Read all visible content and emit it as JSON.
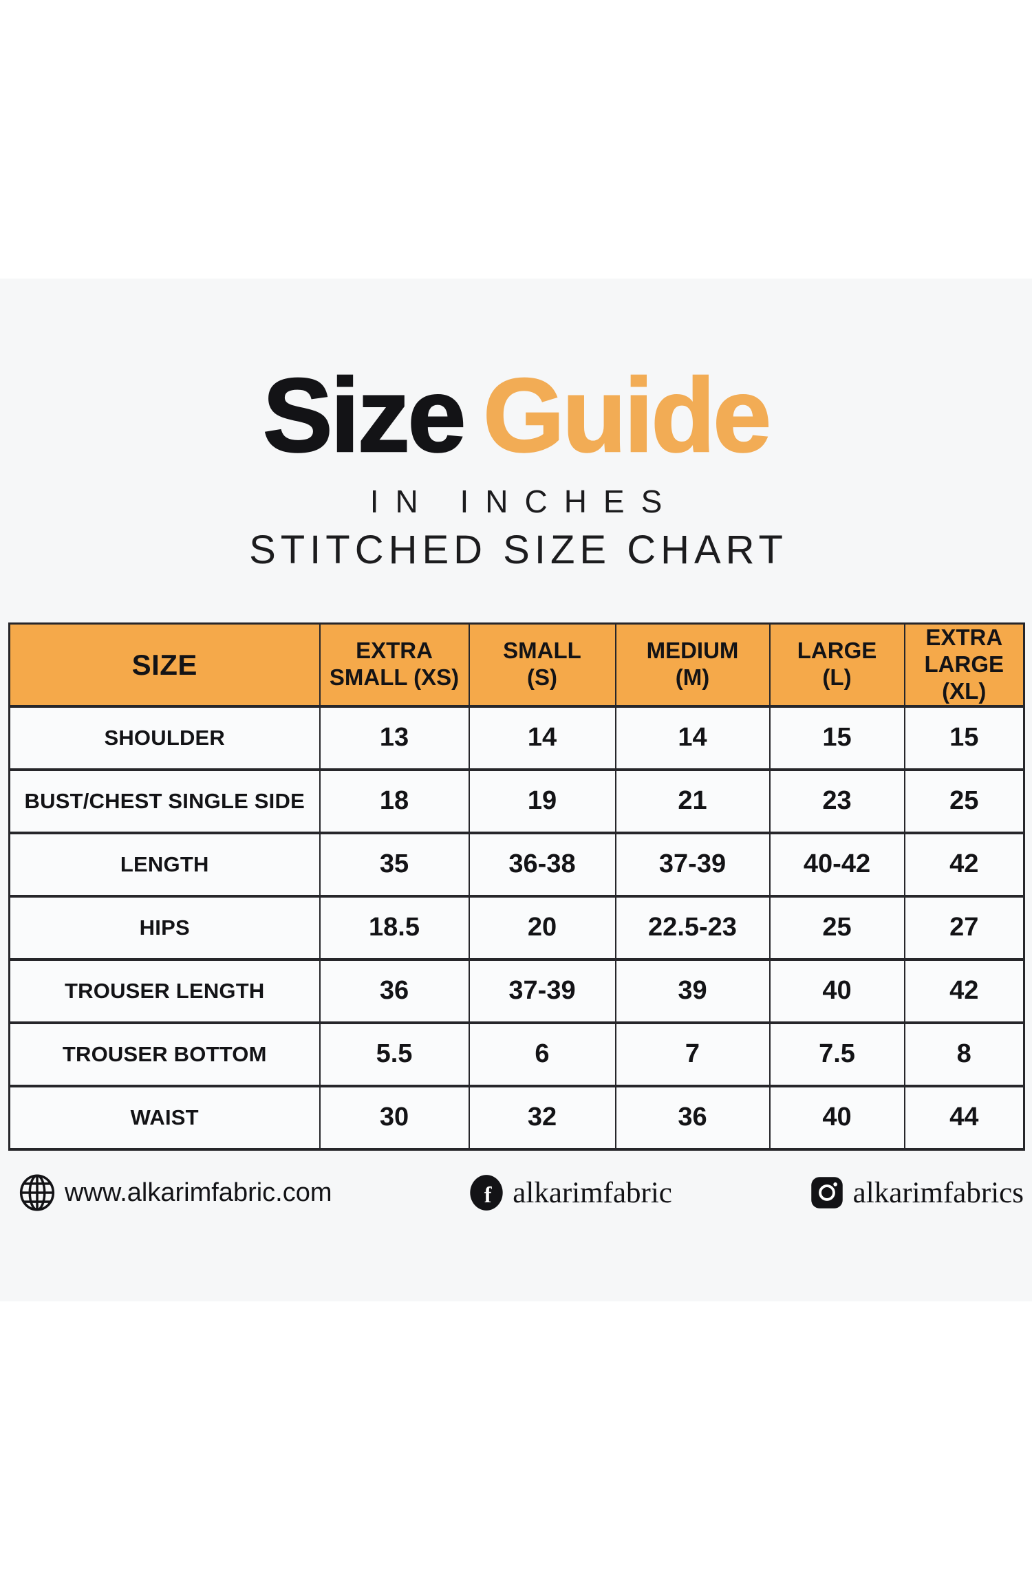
{
  "page": {
    "title_black": "Size",
    "title_accent": "Guide",
    "subtitle1": "IN INCHES",
    "subtitle2": "STITCHED SIZE CHART"
  },
  "colors": {
    "accent_orange": "#F5A94A",
    "title_orange": "#F2AC55",
    "band_background": "#F6F7F8",
    "table_border": "#26262A"
  },
  "table": {
    "header_lines": [
      [
        "SIZE"
      ],
      [
        "EXTRA",
        "SMALL (XS)"
      ],
      [
        "SMALL",
        "(S)"
      ],
      [
        "MEDIUM",
        "(M)"
      ],
      [
        "LARGE",
        "(L)"
      ],
      [
        "EXTRA LARGE",
        "(XL)"
      ]
    ],
    "rows": [
      {
        "label": "SHOULDER",
        "values": [
          "13",
          "14",
          "14",
          "15",
          "15"
        ]
      },
      {
        "label": "BUST/CHEST SINGLE SIDE",
        "values": [
          "18",
          "19",
          "21",
          "23",
          "25"
        ]
      },
      {
        "label": "LENGTH",
        "values": [
          "35",
          "36-38",
          "37-39",
          "40-42",
          "42"
        ]
      },
      {
        "label": "HIPS",
        "values": [
          "18.5",
          "20",
          "22.5-23",
          "25",
          "27"
        ]
      },
      {
        "label": "TROUSER LENGTH",
        "values": [
          "36",
          "37-39",
          "39",
          "40",
          "42"
        ]
      },
      {
        "label": "TROUSER BOTTOM",
        "values": [
          "5.5",
          "6",
          "7",
          "7.5",
          "8"
        ]
      },
      {
        "label": "WAIST",
        "values": [
          "30",
          "32",
          "36",
          "40",
          "44"
        ]
      }
    ]
  },
  "footer": {
    "website": "www.alkarimfabric.com",
    "facebook_handle": "alkarimfabric",
    "instagram_handle": "alkarimfabrics"
  }
}
